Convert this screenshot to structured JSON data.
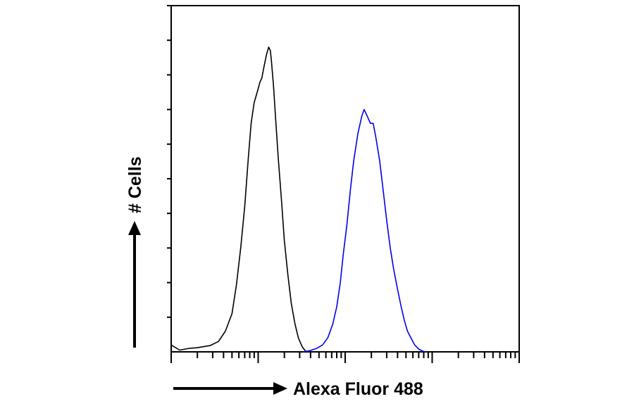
{
  "chart_data": {
    "type": "line",
    "title": "",
    "xlabel": "Alexa Fluor 488",
    "ylabel": "# Cells",
    "x_scale": "log",
    "xlim": [
      1,
      10000
    ],
    "ylim": [
      0,
      1
    ],
    "grid": false,
    "legend": "none",
    "series": [
      {
        "color": "#000000",
        "points": [
          [
            1.0,
            0.02
          ],
          [
            1.25,
            0.005
          ],
          [
            1.6,
            0.01
          ],
          [
            2.0,
            0.012
          ],
          [
            2.8,
            0.018
          ],
          [
            3.5,
            0.03
          ],
          [
            4.2,
            0.06
          ],
          [
            5.0,
            0.11
          ],
          [
            5.6,
            0.19
          ],
          [
            6.3,
            0.3
          ],
          [
            7.0,
            0.42
          ],
          [
            7.7,
            0.56
          ],
          [
            8.3,
            0.66
          ],
          [
            9.0,
            0.72
          ],
          [
            9.5,
            0.74
          ],
          [
            10.0,
            0.76
          ],
          [
            10.5,
            0.78
          ],
          [
            11.0,
            0.79
          ],
          [
            11.8,
            0.83
          ],
          [
            12.5,
            0.86
          ],
          [
            13.2,
            0.88
          ],
          [
            13.8,
            0.87
          ],
          [
            14.2,
            0.84
          ],
          [
            15.0,
            0.77
          ],
          [
            16.0,
            0.66
          ],
          [
            17.0,
            0.56
          ],
          [
            18.5,
            0.44
          ],
          [
            20.0,
            0.32
          ],
          [
            22.0,
            0.22
          ],
          [
            24.0,
            0.14
          ],
          [
            26.5,
            0.08
          ],
          [
            29.0,
            0.04
          ],
          [
            32.0,
            0.015
          ],
          [
            35.0,
            0.002
          ],
          [
            38.0,
            0.0
          ]
        ]
      },
      {
        "color": "#0000ee",
        "points": [
          [
            33.0,
            0.0
          ],
          [
            40.0,
            0.004
          ],
          [
            47.0,
            0.01
          ],
          [
            55.0,
            0.02
          ],
          [
            63.0,
            0.04
          ],
          [
            72.0,
            0.08
          ],
          [
            80.0,
            0.13
          ],
          [
            88.0,
            0.2
          ],
          [
            95.0,
            0.28
          ],
          [
            105.0,
            0.37
          ],
          [
            115.0,
            0.47
          ],
          [
            125.0,
            0.55
          ],
          [
            140.0,
            0.63
          ],
          [
            155.0,
            0.68
          ],
          [
            165.0,
            0.7
          ],
          [
            180.0,
            0.68
          ],
          [
            195.0,
            0.66
          ],
          [
            210.0,
            0.66
          ],
          [
            225.0,
            0.62
          ],
          [
            250.0,
            0.55
          ],
          [
            275.0,
            0.46
          ],
          [
            300.0,
            0.38
          ],
          [
            330.0,
            0.3
          ],
          [
            360.0,
            0.24
          ],
          [
            400.0,
            0.18
          ],
          [
            440.0,
            0.13
          ],
          [
            480.0,
            0.09
          ],
          [
            520.0,
            0.06
          ],
          [
            570.0,
            0.04
          ],
          [
            630.0,
            0.02
          ],
          [
            700.0,
            0.008
          ],
          [
            780.0,
            0.002
          ],
          [
            850.0,
            0.0
          ]
        ]
      }
    ]
  }
}
